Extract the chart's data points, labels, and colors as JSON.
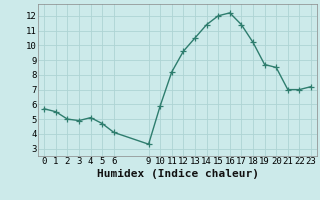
{
  "x": [
    0,
    1,
    2,
    3,
    4,
    5,
    6,
    9,
    10,
    11,
    12,
    13,
    14,
    15,
    16,
    17,
    18,
    19,
    20,
    21,
    22,
    23
  ],
  "y": [
    5.7,
    5.5,
    5.0,
    4.9,
    5.1,
    4.7,
    4.1,
    3.3,
    5.9,
    8.2,
    9.6,
    10.5,
    11.4,
    12.0,
    12.2,
    11.4,
    10.2,
    8.7,
    8.5,
    7.0,
    7.0,
    7.2
  ],
  "line_color": "#2e7d6e",
  "marker_color": "#2e7d6e",
  "bg_color": "#cceaea",
  "grid_color": "#aed4d4",
  "xlabel": "Humidex (Indice chaleur)",
  "xlim": [
    -0.5,
    23.5
  ],
  "ylim": [
    2.5,
    12.8
  ],
  "yticks": [
    3,
    4,
    5,
    6,
    7,
    8,
    9,
    10,
    11,
    12
  ],
  "xticks": [
    0,
    1,
    2,
    3,
    4,
    5,
    6,
    9,
    10,
    11,
    12,
    13,
    14,
    15,
    16,
    17,
    18,
    19,
    20,
    21,
    22,
    23
  ],
  "tick_fontsize": 6.5,
  "xlabel_fontsize": 8,
  "linewidth": 1.0,
  "markersize": 4,
  "marker_linewidth": 0.9
}
